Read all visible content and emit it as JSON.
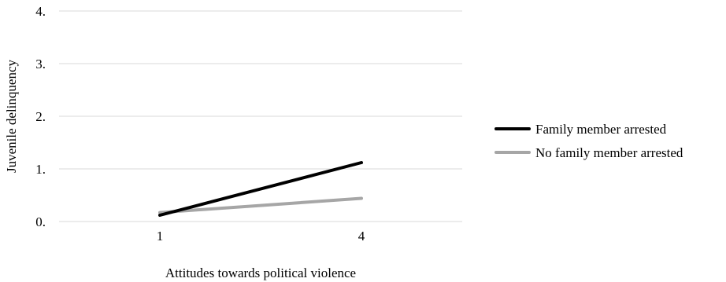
{
  "chart_data": {
    "type": "line",
    "title": "",
    "xlabel": "Attitudes towards political violence",
    "ylabel": "Juvenile delinquency",
    "categories": [
      "1",
      "4"
    ],
    "y_ticks": [
      "0.",
      "1.",
      "2.",
      "3.",
      "4."
    ],
    "ylim": [
      0,
      4
    ],
    "grid": true,
    "legend_position": "right",
    "series": [
      {
        "name": "Family member arrested",
        "values": [
          0.12,
          1.12
        ],
        "color": "#000000"
      },
      {
        "name": "No family member arrested",
        "values": [
          0.17,
          0.44
        ],
        "color": "#a6a6a6"
      }
    ]
  }
}
